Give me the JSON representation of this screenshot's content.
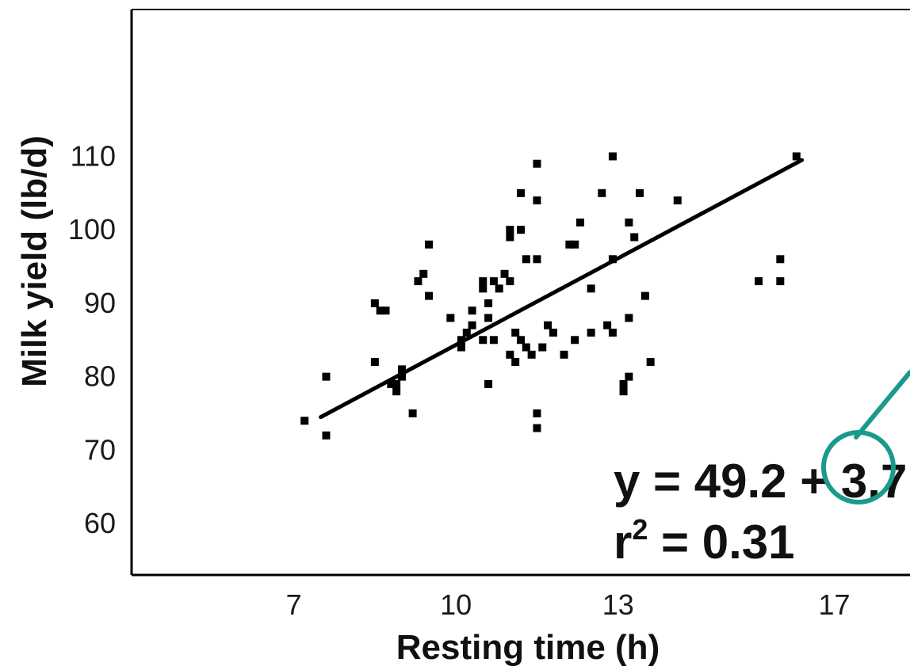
{
  "chart_data": {
    "type": "scatter",
    "title": "",
    "xlabel": "Resting time (h)",
    "ylabel": "Milk yield (lb/d)",
    "xlim": [
      4,
      18.4
    ],
    "ylim": [
      53,
      130
    ],
    "x_ticks": [
      7,
      10,
      13,
      17
    ],
    "y_ticks": [
      60,
      70,
      80,
      90,
      100,
      110
    ],
    "grid": false,
    "legend": "none",
    "series": [
      {
        "marker_color": "#000000",
        "points": [
          [
            7.2,
            74
          ],
          [
            7.6,
            80
          ],
          [
            7.6,
            72
          ],
          [
            8.5,
            90
          ],
          [
            8.6,
            89
          ],
          [
            8.7,
            89
          ],
          [
            8.5,
            82
          ],
          [
            8.8,
            79
          ],
          [
            8.9,
            79
          ],
          [
            9.0,
            80
          ],
          [
            9.0,
            81
          ],
          [
            8.9,
            78
          ],
          [
            9.2,
            75
          ],
          [
            9.3,
            93
          ],
          [
            9.4,
            94
          ],
          [
            9.5,
            91
          ],
          [
            9.5,
            98
          ],
          [
            9.9,
            88
          ],
          [
            10.1,
            84
          ],
          [
            10.1,
            85
          ],
          [
            10.2,
            86
          ],
          [
            10.3,
            87
          ],
          [
            10.3,
            89
          ],
          [
            10.5,
            92
          ],
          [
            10.5,
            93
          ],
          [
            10.5,
            85
          ],
          [
            10.6,
            90
          ],
          [
            10.6,
            88
          ],
          [
            10.7,
            93
          ],
          [
            10.7,
            85
          ],
          [
            10.8,
            92
          ],
          [
            10.9,
            94
          ],
          [
            10.6,
            79
          ],
          [
            11.0,
            93
          ],
          [
            11.0,
            83
          ],
          [
            11.1,
            82
          ],
          [
            11.1,
            86
          ],
          [
            11.2,
            85
          ],
          [
            11.3,
            84
          ],
          [
            11.4,
            83
          ],
          [
            11.0,
            100
          ],
          [
            11.0,
            99
          ],
          [
            11.2,
            100
          ],
          [
            11.2,
            105
          ],
          [
            11.3,
            96
          ],
          [
            11.5,
            96
          ],
          [
            11.5,
            104
          ],
          [
            11.5,
            109
          ],
          [
            11.5,
            75
          ],
          [
            11.5,
            73
          ],
          [
            11.6,
            84
          ],
          [
            11.7,
            87
          ],
          [
            11.8,
            86
          ],
          [
            12.0,
            83
          ],
          [
            12.1,
            98
          ],
          [
            12.2,
            98
          ],
          [
            12.2,
            85
          ],
          [
            12.3,
            101
          ],
          [
            12.5,
            92
          ],
          [
            12.5,
            86
          ],
          [
            12.7,
            105
          ],
          [
            12.8,
            87
          ],
          [
            12.9,
            96
          ],
          [
            12.9,
            86
          ],
          [
            12.9,
            110
          ],
          [
            13.1,
            79
          ],
          [
            13.1,
            78
          ],
          [
            13.2,
            80
          ],
          [
            13.2,
            88
          ],
          [
            13.2,
            101
          ],
          [
            13.3,
            99
          ],
          [
            13.4,
            105
          ],
          [
            13.5,
            91
          ],
          [
            13.6,
            82
          ],
          [
            14.1,
            104
          ],
          [
            15.6,
            93
          ],
          [
            16.0,
            93
          ],
          [
            16.0,
            96
          ],
          [
            16.3,
            110
          ]
        ],
        "trendline": {
          "x": [
            7.5,
            16.4
          ],
          "y": [
            74.5,
            109.5
          ]
        }
      }
    ],
    "annotations": [
      {
        "equation_line1": "y = 49.2 + 3.7",
        "equation_line2_base": "r",
        "equation_line2_sup": "2",
        "equation_line2_rest": " = 0.31"
      }
    ],
    "callout": {
      "color": "#1a9a8c",
      "shape": "circle-with-pointer"
    }
  }
}
